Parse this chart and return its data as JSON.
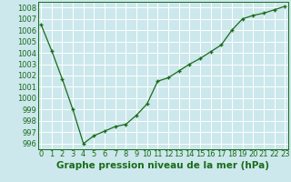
{
  "x": [
    0,
    1,
    2,
    3,
    4,
    5,
    6,
    7,
    8,
    9,
    10,
    11,
    12,
    13,
    14,
    15,
    16,
    17,
    18,
    19,
    20,
    21,
    22,
    23
  ],
  "y": [
    1006.5,
    1004.2,
    1001.7,
    999.0,
    996.0,
    996.7,
    997.1,
    997.5,
    997.7,
    998.5,
    999.5,
    1001.5,
    1001.8,
    1002.4,
    1003.0,
    1003.5,
    1004.1,
    1004.7,
    1006.0,
    1007.0,
    1007.3,
    1007.5,
    1007.8,
    1008.1
  ],
  "title": "Graphe pression niveau de la mer (hPa)",
  "ylim": [
    995.5,
    1008.5
  ],
  "yticks": [
    996,
    997,
    998,
    999,
    1000,
    1001,
    1002,
    1003,
    1004,
    1005,
    1006,
    1007,
    1008
  ],
  "line_color": "#1a6b1a",
  "marker_color": "#1a6b1a",
  "bg_color": "#cce8ec",
  "grid_color": "#ffffff",
  "title_color": "#1a6b1a",
  "title_fontsize": 7.5,
  "tick_fontsize": 6.0
}
